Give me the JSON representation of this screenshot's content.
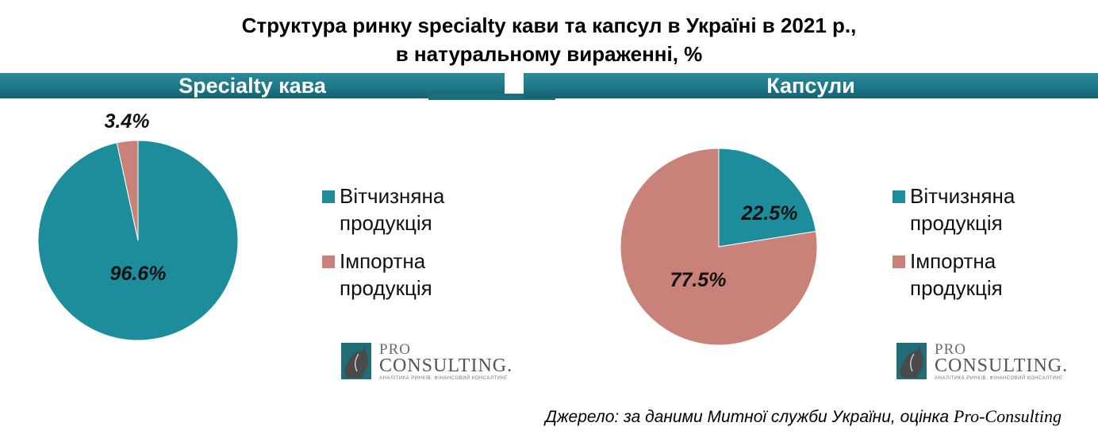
{
  "title": {
    "line1": "Структура ринку specialty кави та капсул в Україні в 2021 р.,",
    "line2": "в натуральному вираженні, %"
  },
  "chart_data": [
    {
      "type": "pie",
      "title": "Specialty кава",
      "slices": [
        {
          "label": "Вітчизняна продукція",
          "value": 96.6,
          "display": "96.6%",
          "color": "#1d8d9c"
        },
        {
          "label": "Імпортна продукція",
          "value": 3.4,
          "display": "3.4%",
          "color": "#c98279"
        }
      ],
      "legend_placement": "right"
    },
    {
      "type": "pie",
      "title": "Капсули",
      "slices": [
        {
          "label": "Вітчизняна продукція",
          "value": 22.5,
          "display": "22.5%",
          "color": "#1d8d9c"
        },
        {
          "label": "Імпортна продукція",
          "value": 77.5,
          "display": "77.5%",
          "color": "#c98279"
        }
      ],
      "legend_placement": "right"
    }
  ],
  "legend": {
    "domestic_line1": "Вітчизняна",
    "domestic_line2": "продукція",
    "import_line1": "Імпортна",
    "import_line2": "продукція"
  },
  "logo": {
    "pro": "PRO",
    "consulting": "CONSULTING.",
    "tagline": "АНАЛІТИКА РИНКІВ. ФІНАНСОВИЙ КОНСАЛТИНГ"
  },
  "source": {
    "text": "Джерело: за даними Митної служби України, оцінка ",
    "brand": "Pro-Consulting"
  },
  "colors": {
    "domestic": "#1d8d9c",
    "import": "#c98279",
    "band": "#1d7684"
  }
}
